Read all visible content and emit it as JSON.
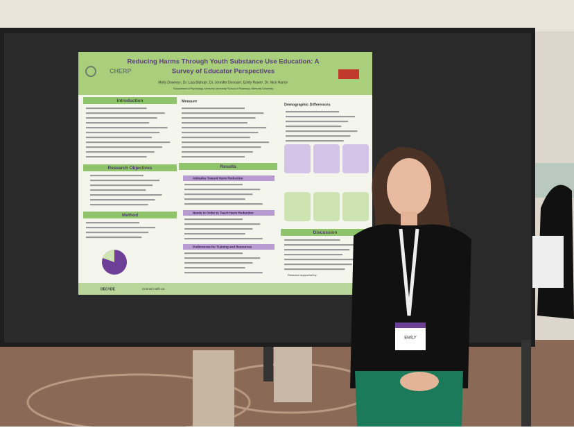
{
  "poster": {
    "title_lines": [
      "Reducing Harms Through Youth Substance Use Education: A",
      "Survey of Educator Perspectives"
    ],
    "authors": "Molly Downey¹, Dr. Lisa Bishop², Dr. Jennifer Donnan², Emily Rowe², Dr. Nick Harris¹",
    "affiliations": "¹Department of Psychology, Memorial University  ²School of Pharmacy, Memorial University",
    "logo": "CHERP",
    "sections": {
      "introduction": "Introduction",
      "objectives": "Research Objectives",
      "method": "Method",
      "measure": "Measure",
      "results": "Results",
      "demographics": "Demographic Differences",
      "discussion": "Discussion"
    },
    "results_headings": [
      "Attitudes Toward Harm Reduction",
      "Needs in Order to Teach Harm Reduction",
      "Preferences for Training and Resources"
    ],
    "footer": {
      "connect": "Connect with us:",
      "support": "Research supported by:",
      "sponsor": "DECYDE"
    }
  },
  "badge": {
    "name": "EMILY"
  }
}
